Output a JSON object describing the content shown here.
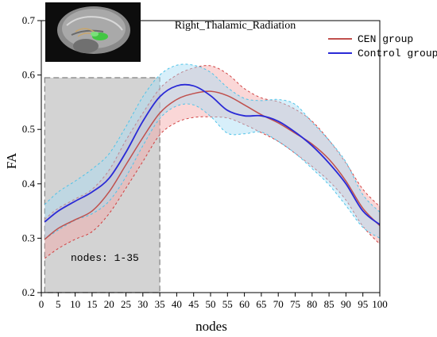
{
  "chart_data": {
    "type": "line",
    "title": "Right_Thalamic_Radiation",
    "xlabel": "nodes",
    "ylabel": "FA",
    "xlim": [
      0,
      100
    ],
    "ylim": [
      0.2,
      0.7
    ],
    "xticks": [
      0,
      5,
      10,
      15,
      20,
      25,
      30,
      35,
      40,
      45,
      50,
      55,
      60,
      65,
      70,
      75,
      80,
      85,
      90,
      95,
      100
    ],
    "yticks": [
      0.2,
      0.3,
      0.4,
      0.5,
      0.6,
      0.7
    ],
    "legend_position": "top-right",
    "grid": false,
    "x": [
      1,
      5,
      10,
      15,
      20,
      25,
      30,
      35,
      40,
      45,
      50,
      55,
      60,
      65,
      70,
      75,
      80,
      85,
      90,
      95,
      100
    ],
    "series": [
      {
        "name": "CEN group",
        "color": "#c0504d",
        "band_color": "#f4a6a6",
        "values": [
          0.298,
          0.318,
          0.334,
          0.35,
          0.385,
          0.435,
          0.485,
          0.53,
          0.555,
          0.566,
          0.57,
          0.562,
          0.545,
          0.527,
          0.512,
          0.493,
          0.473,
          0.445,
          0.405,
          0.355,
          0.323
        ],
        "upper": [
          0.335,
          0.355,
          0.372,
          0.39,
          0.425,
          0.48,
          0.53,
          0.575,
          0.6,
          0.613,
          0.617,
          0.602,
          0.575,
          0.558,
          0.551,
          0.537,
          0.515,
          0.48,
          0.438,
          0.39,
          0.358
        ],
        "lower": [
          0.263,
          0.281,
          0.298,
          0.312,
          0.345,
          0.392,
          0.441,
          0.49,
          0.513,
          0.522,
          0.523,
          0.521,
          0.509,
          0.494,
          0.478,
          0.456,
          0.432,
          0.405,
          0.37,
          0.322,
          0.289
        ]
      },
      {
        "name": "Control group",
        "color": "#2a2ad6",
        "band_color": "#a6dcf4",
        "values": [
          0.33,
          0.35,
          0.368,
          0.385,
          0.41,
          0.458,
          0.515,
          0.56,
          0.58,
          0.58,
          0.562,
          0.535,
          0.525,
          0.525,
          0.515,
          0.495,
          0.47,
          0.438,
          0.4,
          0.35,
          0.325
        ],
        "upper": [
          0.362,
          0.385,
          0.405,
          0.427,
          0.455,
          0.505,
          0.56,
          0.6,
          0.618,
          0.618,
          0.605,
          0.577,
          0.557,
          0.553,
          0.555,
          0.546,
          0.513,
          0.48,
          0.44,
          0.38,
          0.348
        ],
        "lower": [
          0.298,
          0.315,
          0.333,
          0.345,
          0.368,
          0.413,
          0.47,
          0.52,
          0.543,
          0.545,
          0.524,
          0.493,
          0.492,
          0.495,
          0.478,
          0.456,
          0.428,
          0.398,
          0.36,
          0.32,
          0.3
        ]
      }
    ],
    "highlight_region": {
      "x_start": 1,
      "x_end": 35,
      "y_top": 0.595,
      "label": "nodes: 1-35"
    },
    "inset": {
      "icon": "brain-mri-inset"
    }
  }
}
